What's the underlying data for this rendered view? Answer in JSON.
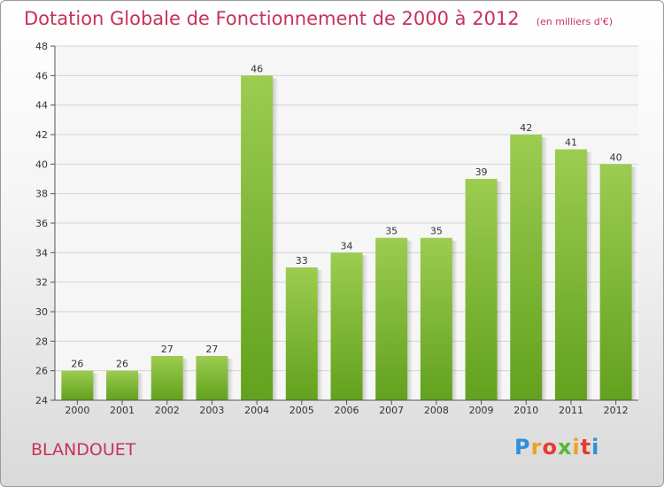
{
  "title": "Dotation Globale de Fonctionnement de 2000 à 2012",
  "subtitle": "(en milliers d'€)",
  "location": "BLANDOUET",
  "logo": {
    "letters": [
      "P",
      "r",
      "o",
      "x",
      "i",
      "t",
      "i"
    ]
  },
  "colors": {
    "title": "#c8325a",
    "bar_light": "#9ccc50",
    "bar_dark": "#62a11e"
  },
  "chart_data": {
    "type": "bar",
    "categories": [
      "2000",
      "2001",
      "2002",
      "2003",
      "2004",
      "2005",
      "2006",
      "2007",
      "2008",
      "2009",
      "2010",
      "2011",
      "2012"
    ],
    "values": [
      26,
      26,
      27,
      27,
      46,
      33,
      34,
      35,
      35,
      39,
      42,
      41,
      40
    ],
    "ylim": [
      24,
      48
    ],
    "yticks": [
      24,
      26,
      28,
      30,
      32,
      34,
      36,
      38,
      40,
      42,
      44,
      46,
      48
    ],
    "grid": true
  }
}
